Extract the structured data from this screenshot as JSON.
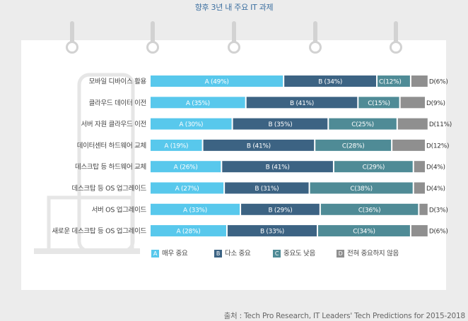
{
  "title": "향후 3년 내 주요 IT 과제",
  "colors": {
    "A": "#58c8ec",
    "B": "#3c6383",
    "C": "#4f8b96",
    "D": "#8f8f8f"
  },
  "chart_data": {
    "type": "bar",
    "stacked": true,
    "orientation": "horizontal",
    "categories": [
      "모바일 디바이스 활용",
      "클라우드 데이터 이전",
      "서버 자원 클라우드 이전",
      "데이터센터 하드웨어 교체",
      "데스크탑 등 하드웨어 교체",
      "데스크탑 등 OS 업그레이드",
      "서버 OS 업그레이드",
      "새로운 데스크탑 등 OS 업그레이드"
    ],
    "series": [
      {
        "name": "A",
        "values": [
          49,
          35,
          30,
          19,
          26,
          27,
          33,
          28
        ]
      },
      {
        "name": "B",
        "values": [
          34,
          41,
          35,
          41,
          41,
          31,
          29,
          33
        ]
      },
      {
        "name": "C",
        "values": [
          12,
          15,
          25,
          28,
          29,
          38,
          36,
          34
        ]
      },
      {
        "name": "D",
        "values": [
          6,
          9,
          11,
          12,
          4,
          4,
          3,
          6
        ]
      }
    ],
    "bar_labels": [
      [
        "A (49%)",
        "B (34%)",
        "C(12%)",
        "D(6%)"
      ],
      [
        "A (35%)",
        "B (41%)",
        "C(15%)",
        "D(9%)"
      ],
      [
        "A (30%)",
        "B (35%)",
        "C(25%)",
        "D(11%)"
      ],
      [
        "A (19%)",
        "B (41%)",
        "C(28%)",
        "D(12%)"
      ],
      [
        "A (26%)",
        "B (41%)",
        "C(29%)",
        "D(4%)"
      ],
      [
        "A (27%)",
        "B (31%)",
        "C(38%)",
        "D(4%)"
      ],
      [
        "A (33%)",
        "B (29%)",
        "C(36%)",
        "D(3%)"
      ],
      [
        "A (28%)",
        "B (33%)",
        "C(34%)",
        "D(6%)"
      ]
    ],
    "legend": [
      {
        "key": "A",
        "label": "매우 중요"
      },
      {
        "key": "B",
        "label": "다소 중요"
      },
      {
        "key": "C",
        "label": "중요도 낮음"
      },
      {
        "key": "D",
        "label": "전혀 중요하지 않음"
      }
    ],
    "legend_position": "bottom"
  },
  "source": "출처 : Tech Pro Research, IT Leaders' Tech Predictions for 2015-2018"
}
